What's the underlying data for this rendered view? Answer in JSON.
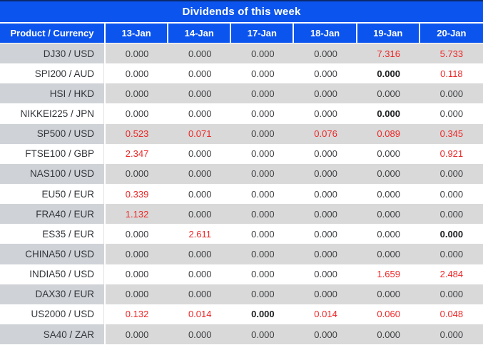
{
  "title": "Dividends of this week",
  "colors": {
    "header_blue": "#0b54ee",
    "value_red": "#ee2626",
    "row_grey": "#d9d9d9"
  },
  "table": {
    "header": [
      "Product / Currency",
      "13-Jan",
      "14-Jan",
      "17-Jan",
      "18-Jan",
      "19-Jan",
      "20-Jan"
    ],
    "rows": [
      {
        "product": "DJ30 / USD",
        "cells": [
          {
            "v": "0.000"
          },
          {
            "v": "0.000"
          },
          {
            "v": "0.000"
          },
          {
            "v": "0.000"
          },
          {
            "v": "7.316",
            "red": true
          },
          {
            "v": "5.733",
            "red": true
          }
        ]
      },
      {
        "product": "SPI200 / AUD",
        "cells": [
          {
            "v": "0.000"
          },
          {
            "v": "0.000"
          },
          {
            "v": "0.000"
          },
          {
            "v": "0.000"
          },
          {
            "v": "0.000",
            "bold": true
          },
          {
            "v": "0.118",
            "red": true
          }
        ]
      },
      {
        "product": "HSI / HKD",
        "cells": [
          {
            "v": "0.000"
          },
          {
            "v": "0.000"
          },
          {
            "v": "0.000"
          },
          {
            "v": "0.000"
          },
          {
            "v": "0.000"
          },
          {
            "v": "0.000"
          }
        ]
      },
      {
        "product": "NIKKEI225 / JPN",
        "cells": [
          {
            "v": "0.000"
          },
          {
            "v": "0.000"
          },
          {
            "v": "0.000"
          },
          {
            "v": "0.000"
          },
          {
            "v": "0.000",
            "bold": true
          },
          {
            "v": "0.000"
          }
        ]
      },
      {
        "product": "SP500 / USD",
        "cells": [
          {
            "v": "0.523",
            "red": true
          },
          {
            "v": "0.071",
            "red": true
          },
          {
            "v": "0.000"
          },
          {
            "v": "0.076",
            "red": true
          },
          {
            "v": "0.089",
            "red": true
          },
          {
            "v": "0.345",
            "red": true
          }
        ]
      },
      {
        "product": "FTSE100 / GBP",
        "cells": [
          {
            "v": "2.347",
            "red": true
          },
          {
            "v": "0.000"
          },
          {
            "v": "0.000"
          },
          {
            "v": "0.000"
          },
          {
            "v": "0.000"
          },
          {
            "v": "0.921",
            "red": true
          }
        ]
      },
      {
        "product": "NAS100 / USD",
        "cells": [
          {
            "v": "0.000"
          },
          {
            "v": "0.000"
          },
          {
            "v": "0.000"
          },
          {
            "v": "0.000"
          },
          {
            "v": "0.000"
          },
          {
            "v": "0.000"
          }
        ]
      },
      {
        "product": "EU50 / EUR",
        "cells": [
          {
            "v": "0.339",
            "red": true
          },
          {
            "v": "0.000"
          },
          {
            "v": "0.000"
          },
          {
            "v": "0.000"
          },
          {
            "v": "0.000"
          },
          {
            "v": "0.000"
          }
        ]
      },
      {
        "product": "FRA40 / EUR",
        "cells": [
          {
            "v": "1.132",
            "red": true
          },
          {
            "v": "0.000"
          },
          {
            "v": "0.000"
          },
          {
            "v": "0.000"
          },
          {
            "v": "0.000"
          },
          {
            "v": "0.000"
          }
        ]
      },
      {
        "product": "ES35 / EUR",
        "cells": [
          {
            "v": "0.000"
          },
          {
            "v": "2.611",
            "red": true
          },
          {
            "v": "0.000"
          },
          {
            "v": "0.000"
          },
          {
            "v": "0.000"
          },
          {
            "v": "0.000",
            "bold": true
          }
        ]
      },
      {
        "product": "CHINA50 / USD",
        "cells": [
          {
            "v": "0.000"
          },
          {
            "v": "0.000"
          },
          {
            "v": "0.000"
          },
          {
            "v": "0.000"
          },
          {
            "v": "0.000"
          },
          {
            "v": "0.000"
          }
        ]
      },
      {
        "product": "INDIA50 / USD",
        "cells": [
          {
            "v": "0.000"
          },
          {
            "v": "0.000"
          },
          {
            "v": "0.000"
          },
          {
            "v": "0.000"
          },
          {
            "v": "1.659",
            "red": true
          },
          {
            "v": "2.484",
            "red": true
          }
        ]
      },
      {
        "product": "DAX30 / EUR",
        "cells": [
          {
            "v": "0.000"
          },
          {
            "v": "0.000"
          },
          {
            "v": "0.000"
          },
          {
            "v": "0.000"
          },
          {
            "v": "0.000"
          },
          {
            "v": "0.000"
          }
        ]
      },
      {
        "product": "US2000 / USD",
        "cells": [
          {
            "v": "0.132",
            "red": true
          },
          {
            "v": "0.014",
            "red": true
          },
          {
            "v": "0.000",
            "bold": true
          },
          {
            "v": "0.014",
            "red": true
          },
          {
            "v": "0.060",
            "red": true
          },
          {
            "v": "0.048",
            "red": true
          }
        ]
      },
      {
        "product": "SA40 / ZAR",
        "cells": [
          {
            "v": "0.000"
          },
          {
            "v": "0.000"
          },
          {
            "v": "0.000"
          },
          {
            "v": "0.000"
          },
          {
            "v": "0.000"
          },
          {
            "v": "0.000"
          }
        ]
      }
    ]
  }
}
